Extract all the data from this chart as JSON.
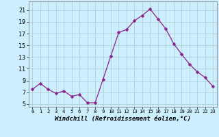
{
  "x": [
    0,
    1,
    2,
    3,
    4,
    5,
    6,
    7,
    8,
    9,
    10,
    11,
    12,
    13,
    14,
    15,
    16,
    17,
    18,
    19,
    20,
    21,
    22,
    23
  ],
  "y": [
    7.5,
    8.5,
    7.5,
    6.8,
    7.2,
    6.3,
    6.6,
    5.2,
    5.2,
    9.2,
    13.2,
    17.2,
    17.7,
    19.2,
    20.1,
    21.2,
    19.5,
    17.8,
    15.3,
    13.5,
    11.8,
    10.5,
    9.5,
    8.0
  ],
  "line_color": "#882288",
  "marker": "P",
  "marker_size": 2.5,
  "bg_color": "#cceeff",
  "grid_color": "#aacccc",
  "xlabel": "Windchill (Refroidissement éolien,°C)",
  "yticks": [
    5,
    7,
    9,
    11,
    13,
    15,
    17,
    19,
    21
  ],
  "xticks": [
    0,
    1,
    2,
    3,
    4,
    5,
    6,
    7,
    8,
    9,
    10,
    11,
    12,
    13,
    14,
    15,
    16,
    17,
    18,
    19,
    20,
    21,
    22,
    23
  ],
  "ylim": [
    4.5,
    22.5
  ],
  "xlim": [
    -0.5,
    23.5
  ],
  "xlabel_fontsize": 6.5,
  "tick_fontsize_x": 5.2,
  "tick_fontsize_y": 6.0
}
